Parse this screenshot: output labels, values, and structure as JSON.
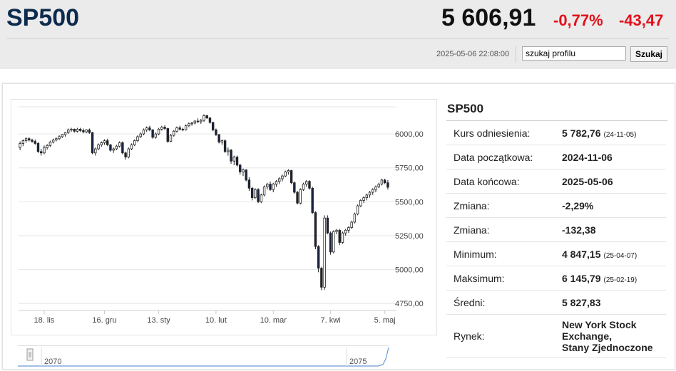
{
  "header": {
    "title": "SP500",
    "price": "5 606,91",
    "change_pct": "-0,77%",
    "change_abs": "-43,47",
    "datetime": "2025-05-06 22:08:00",
    "search_value": "szukaj profilu",
    "search_button": "Szukaj"
  },
  "info": {
    "title": "SP500",
    "rows": [
      {
        "label": "Kurs odniesienia:",
        "value": "5 782,76",
        "note": "(24-11-05)"
      },
      {
        "label": "Data początkowa:",
        "value": "2024-11-06",
        "note": ""
      },
      {
        "label": "Data końcowa:",
        "value": "2025-05-06",
        "note": ""
      },
      {
        "label": "Zmiana:",
        "value": "-2,29%",
        "note": ""
      },
      {
        "label": "Zmiana:",
        "value": "-132,38",
        "note": ""
      },
      {
        "label": "Minimum:",
        "value": "4 847,15",
        "note": "(25-04-07)"
      },
      {
        "label": "Maksimum:",
        "value": "6 145,79",
        "note": "(25-02-19)"
      },
      {
        "label": "Średni:",
        "value": "5 827,83",
        "note": ""
      }
    ],
    "market": {
      "label": "Rynek:",
      "value_lines": [
        "New York Stock",
        "Exchange,",
        "Stany Zjednoczone"
      ]
    }
  },
  "chart_data": {
    "type": "candlestick",
    "y_ticks": [
      "6000,00",
      "5750,00",
      "5500,00",
      "5250,00",
      "5000,00",
      "4750,00"
    ],
    "y_tick_values": [
      6000,
      5750,
      5500,
      5250,
      5000,
      4750
    ],
    "ylim": [
      4750,
      6200
    ],
    "x_ticks": [
      "18. lis",
      "16. gru",
      "13. sty",
      "10. lut",
      "10. mar",
      "7. kwi",
      "5. maj"
    ],
    "x_tick_index": [
      8,
      28,
      46,
      65,
      84,
      103,
      121
    ],
    "ohlc": [
      [
        5900,
        5945,
        5880,
        5930
      ],
      [
        5930,
        5960,
        5910,
        5950
      ],
      [
        5950,
        5975,
        5935,
        5965
      ],
      [
        5965,
        5975,
        5945,
        5955
      ],
      [
        5955,
        5965,
        5935,
        5945
      ],
      [
        5945,
        5960,
        5920,
        5930
      ],
      [
        5930,
        5940,
        5860,
        5870
      ],
      [
        5870,
        5890,
        5840,
        5860
      ],
      [
        5860,
        5915,
        5850,
        5900
      ],
      [
        5900,
        5925,
        5885,
        5915
      ],
      [
        5915,
        5950,
        5905,
        5940
      ],
      [
        5940,
        5965,
        5930,
        5955
      ],
      [
        5955,
        5975,
        5945,
        5965
      ],
      [
        5965,
        5990,
        5955,
        5980
      ],
      [
        5980,
        6000,
        5970,
        5995
      ],
      [
        5995,
        6015,
        5980,
        6010
      ],
      [
        6010,
        6040,
        6000,
        6030
      ],
      [
        6030,
        6045,
        6015,
        6035
      ],
      [
        6035,
        6040,
        6010,
        6020
      ],
      [
        6020,
        6045,
        6010,
        6035
      ],
      [
        6035,
        6045,
        6015,
        6025
      ],
      [
        6025,
        6040,
        6005,
        6015
      ],
      [
        6015,
        6035,
        6005,
        6030
      ],
      [
        6030,
        6040,
        6000,
        6010
      ],
      [
        6010,
        6015,
        5850,
        5860
      ],
      [
        5860,
        5900,
        5840,
        5890
      ],
      [
        5890,
        5930,
        5880,
        5920
      ],
      [
        5920,
        5945,
        5905,
        5935
      ],
      [
        5935,
        5960,
        5920,
        5950
      ],
      [
        5950,
        5965,
        5910,
        5920
      ],
      [
        5920,
        5925,
        5870,
        5880
      ],
      [
        5880,
        5900,
        5860,
        5890
      ],
      [
        5890,
        5920,
        5880,
        5910
      ],
      [
        5910,
        5945,
        5900,
        5935
      ],
      [
        5935,
        5945,
        5850,
        5860
      ],
      [
        5860,
        5870,
        5810,
        5830
      ],
      [
        5830,
        5900,
        5820,
        5890
      ],
      [
        5890,
        5930,
        5880,
        5920
      ],
      [
        5920,
        5960,
        5910,
        5950
      ],
      [
        5950,
        5990,
        5940,
        5980
      ],
      [
        5980,
        6010,
        5970,
        6000
      ],
      [
        6000,
        6040,
        5990,
        6030
      ],
      [
        6030,
        6055,
        6015,
        6045
      ],
      [
        6045,
        6060,
        6020,
        6030
      ],
      [
        6030,
        6035,
        5965,
        5975
      ],
      [
        5975,
        6010,
        5965,
        6000
      ],
      [
        6000,
        6045,
        5990,
        6035
      ],
      [
        6035,
        6060,
        6025,
        6050
      ],
      [
        6050,
        6065,
        6030,
        6040
      ],
      [
        6040,
        6045,
        5935,
        5945
      ],
      [
        5945,
        6000,
        5940,
        5990
      ],
      [
        5990,
        6030,
        5980,
        6020
      ],
      [
        6020,
        6055,
        6010,
        6045
      ],
      [
        6045,
        6060,
        6025,
        6035
      ],
      [
        6035,
        6045,
        6020,
        6030
      ],
      [
        6030,
        6070,
        6025,
        6060
      ],
      [
        6060,
        6085,
        6050,
        6075
      ],
      [
        6075,
        6090,
        6060,
        6080
      ],
      [
        6080,
        6100,
        6070,
        6095
      ],
      [
        6095,
        6115,
        6080,
        6090
      ],
      [
        6090,
        6110,
        6075,
        6100
      ],
      [
        6100,
        6145,
        6090,
        6135
      ],
      [
        6135,
        6140,
        6110,
        6118
      ],
      [
        6118,
        6125,
        6075,
        6085
      ],
      [
        6085,
        6090,
        6020,
        6030
      ],
      [
        6030,
        6040,
        5985,
        5995
      ],
      [
        5995,
        6000,
        5930,
        5940
      ],
      [
        5940,
        5960,
        5920,
        5950
      ],
      [
        5950,
        5960,
        5860,
        5870
      ],
      [
        5870,
        5900,
        5840,
        5880
      ],
      [
        5880,
        5890,
        5780,
        5800
      ],
      [
        5800,
        5840,
        5770,
        5830
      ],
      [
        5830,
        5840,
        5760,
        5770
      ],
      [
        5770,
        5780,
        5700,
        5720
      ],
      [
        5720,
        5745,
        5690,
        5735
      ],
      [
        5735,
        5740,
        5650,
        5660
      ],
      [
        5660,
        5680,
        5580,
        5600
      ],
      [
        5600,
        5610,
        5510,
        5530
      ],
      [
        5530,
        5600,
        5520,
        5590
      ],
      [
        5590,
        5600,
        5490,
        5500
      ],
      [
        5500,
        5560,
        5490,
        5550
      ],
      [
        5550,
        5620,
        5540,
        5610
      ],
      [
        5610,
        5640,
        5590,
        5630
      ],
      [
        5630,
        5650,
        5580,
        5590
      ],
      [
        5590,
        5640,
        5570,
        5630
      ],
      [
        5630,
        5660,
        5610,
        5650
      ],
      [
        5650,
        5680,
        5630,
        5670
      ],
      [
        5670,
        5700,
        5650,
        5690
      ],
      [
        5690,
        5730,
        5680,
        5720
      ],
      [
        5720,
        5740,
        5700,
        5730
      ],
      [
        5730,
        5735,
        5630,
        5640
      ],
      [
        5640,
        5650,
        5560,
        5570
      ],
      [
        5570,
        5580,
        5480,
        5490
      ],
      [
        5490,
        5600,
        5480,
        5590
      ],
      [
        5590,
        5640,
        5580,
        5630
      ],
      [
        5630,
        5660,
        5610,
        5650
      ],
      [
        5650,
        5660,
        5590,
        5600
      ],
      [
        5600,
        5610,
        5410,
        5420
      ],
      [
        5420,
        5430,
        5150,
        5170
      ],
      [
        5170,
        5180,
        4980,
        5010
      ],
      [
        5010,
        5020,
        4847,
        4870
      ],
      [
        4870,
        5400,
        4850,
        5380
      ],
      [
        5380,
        5400,
        5260,
        5270
      ],
      [
        5270,
        5280,
        5110,
        5130
      ],
      [
        5130,
        5290,
        5120,
        5280
      ],
      [
        5280,
        5300,
        5260,
        5290
      ],
      [
        5290,
        5300,
        5180,
        5200
      ],
      [
        5200,
        5280,
        5190,
        5270
      ],
      [
        5270,
        5300,
        5250,
        5290
      ],
      [
        5290,
        5320,
        5270,
        5310
      ],
      [
        5310,
        5360,
        5300,
        5350
      ],
      [
        5350,
        5420,
        5340,
        5410
      ],
      [
        5410,
        5480,
        5400,
        5470
      ],
      [
        5470,
        5520,
        5460,
        5510
      ],
      [
        5510,
        5540,
        5490,
        5530
      ],
      [
        5530,
        5560,
        5510,
        5550
      ],
      [
        5550,
        5580,
        5530,
        5570
      ],
      [
        5570,
        5600,
        5550,
        5590
      ],
      [
        5590,
        5620,
        5570,
        5610
      ],
      [
        5610,
        5640,
        5600,
        5630
      ],
      [
        5630,
        5670,
        5620,
        5660
      ],
      [
        5660,
        5670,
        5630,
        5640
      ],
      [
        5640,
        5660,
        5590,
        5607
      ]
    ],
    "navigator_labels": [
      "2070",
      "2075"
    ]
  }
}
